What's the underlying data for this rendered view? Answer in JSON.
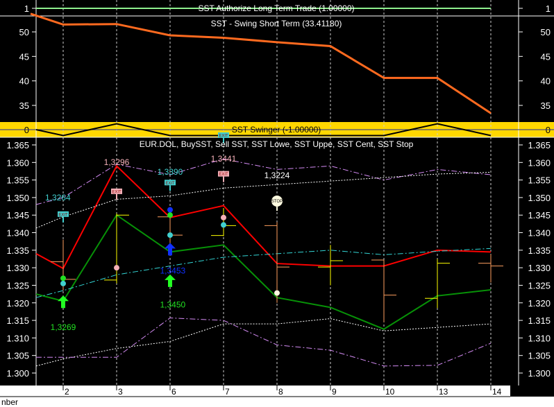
{
  "chart_data": [
    {
      "panel": "authorize",
      "type": "line",
      "title": "SST Authorize Long Term Trade (1.00000)",
      "yticks": [
        "1"
      ],
      "color": "#8ef08e",
      "values": [
        1,
        1,
        1,
        1,
        1,
        1,
        1,
        1,
        1
      ]
    },
    {
      "panel": "swing",
      "type": "line",
      "title": "SST - Swing Short Term (33.41180)",
      "ylim": [
        32,
        54
      ],
      "yticks": [
        "35",
        "40",
        "45",
        "50"
      ],
      "color": "#ff6a1f",
      "lead_value": 53.7,
      "values": [
        51.5,
        51.6,
        49.3,
        48.8,
        47.9,
        47.1,
        40.6,
        40.6,
        33.4
      ]
    },
    {
      "panel": "swinger",
      "type": "line",
      "title": "SST Swinger (-1.00000)",
      "ylim": [
        -1.2,
        1.2
      ],
      "yticks": [
        "0"
      ],
      "background": "#ffd700",
      "color": "#000000",
      "lead_value": 0,
      "values": [
        -1,
        1,
        -1,
        -1,
        -1,
        -1,
        -1,
        1,
        -1
      ]
    },
    {
      "panel": "price",
      "type": "line",
      "title": "EUR.DOL, BuySST, Sell SST, SST Lowe, SST Uppe, SST Cent, SST Stop",
      "ylim": [
        1.296,
        1.367
      ],
      "yticks": [
        "1.300",
        "1.305",
        "1.310",
        "1.315",
        "1.320",
        "1.325",
        "1.330",
        "1.335",
        "1.340",
        "1.345",
        "1.350",
        "1.355",
        "1.360",
        "1.365"
      ],
      "categories": [
        "2",
        "3",
        "6",
        "7",
        "8",
        "9",
        "10",
        "13",
        "14"
      ],
      "xlabel": "nber",
      "series": [
        {
          "color": "#ff0000",
          "style": "solid",
          "lead": 1.334,
          "values": [
            1.3298,
            1.359,
            1.3443,
            1.3477,
            1.3312,
            1.3305,
            1.3305,
            1.335,
            1.3345
          ]
        },
        {
          "color": "#079107",
          "style": "solid",
          "lead": 1.3225,
          "values": [
            1.3205,
            1.345,
            1.3345,
            1.3365,
            1.3215,
            1.3187,
            1.3125,
            1.322,
            1.3237
          ]
        },
        {
          "color": "#d58cf5",
          "style": "dashdot",
          "lead": 1.348,
          "values": [
            1.35,
            1.3595,
            1.3565,
            1.361,
            1.358,
            1.359,
            1.355,
            1.358,
            1.3565
          ]
        },
        {
          "color": "#ffffff",
          "style": "dotted",
          "lead": 1.3413,
          "values": [
            1.3445,
            1.3495,
            1.3505,
            1.3527,
            1.3537,
            1.3547,
            1.3557,
            1.3567,
            1.3572
          ]
        },
        {
          "color": "#33d6d6",
          "style": "dashdot",
          "lead": 1.3215,
          "values": [
            1.3235,
            1.328,
            1.3305,
            1.333,
            1.334,
            1.335,
            1.3337,
            1.3347,
            1.3355
          ]
        },
        {
          "color": "#ffffff",
          "style": "dotted",
          "lead": 1.302,
          "values": [
            1.304,
            1.307,
            1.309,
            1.314,
            1.314,
            1.3155,
            1.312,
            1.313,
            1.314
          ]
        },
        {
          "color": "#d58cf5",
          "style": "dashdot",
          "lead": 1.3045,
          "values": [
            1.3045,
            1.3045,
            1.3157,
            1.315,
            1.308,
            1.3065,
            1.302,
            1.3022,
            1.3085
          ]
        }
      ],
      "ohlc": [
        {
          "o": 1.3317,
          "h": 1.338,
          "l": 1.3235,
          "c": 1.3267,
          "color": "#ffa060"
        },
        {
          "o": 1.3265,
          "h": 1.3455,
          "l": 1.3255,
          "c": 1.345,
          "color": "#ffff00"
        },
        {
          "o": 1.3445,
          "h": 1.3445,
          "l": 1.334,
          "c": 1.3393,
          "color": "#ffa060"
        },
        {
          "o": 1.3392,
          "h": 1.347,
          "l": 1.339,
          "c": 1.342,
          "color": "#ffff00"
        },
        {
          "o": 1.342,
          "h": 1.343,
          "l": 1.32,
          "c": 1.3302,
          "color": "#ffa060"
        },
        {
          "o": 1.3302,
          "h": 1.3365,
          "l": 1.325,
          "c": 1.332,
          "color": "#ffff00"
        },
        {
          "o": 1.3322,
          "h": 1.3322,
          "l": 1.3145,
          "c": 1.3222,
          "color": "#ffa060"
        },
        {
          "o": 1.3213,
          "h": 1.3325,
          "l": 1.3185,
          "c": 1.3313,
          "color": "#ffff00"
        },
        {
          "o": 1.3313,
          "h": 1.3338,
          "l": 1.3258,
          "c": 1.3305,
          "color": "#ffa060"
        }
      ],
      "dots": [
        {
          "i": 0,
          "y": 1.327,
          "color": "#22e022"
        },
        {
          "i": 0,
          "y": 1.3255,
          "color": "#40d0d0"
        },
        {
          "i": 1,
          "y": 1.33,
          "color": "#f4b0b8"
        },
        {
          "i": 2,
          "y": 1.3465,
          "color": "#1030ff"
        },
        {
          "i": 2,
          "y": 1.345,
          "color": "#22e022"
        },
        {
          "i": 2,
          "y": 1.3393,
          "color": "#40d0d0"
        },
        {
          "i": 3,
          "y": 1.3443,
          "color": "#f4b0b8"
        },
        {
          "i": 3,
          "y": 1.3422,
          "color": "#40d0d0"
        },
        {
          "i": 4,
          "y": 1.3228,
          "color": "#fffbe0"
        }
      ],
      "arrows": [
        {
          "i": 0,
          "y": 1.3205,
          "color": "#22ff22"
        },
        {
          "i": 2,
          "y": 1.3355,
          "color": "#1030ff"
        },
        {
          "i": 2,
          "y": 1.3265,
          "color": "#22ff22"
        }
      ],
      "flags": [
        {
          "i": 0,
          "y": 1.3435,
          "label": "EXIT",
          "color": "#40d0d0"
        },
        {
          "i": 1,
          "y": 1.35,
          "label": "EXIT",
          "color": "#f4b0b8"
        },
        {
          "i": 2,
          "y": 1.3525,
          "label": "EXIT",
          "color": "#40d0d0"
        },
        {
          "i": 3,
          "y": 1.355,
          "label": "EXIT",
          "color": "#f4b0b8"
        },
        {
          "i": 3,
          "y": 1.366,
          "label": "EXIT",
          "color": "#40d0d0"
        }
      ],
      "stop": {
        "i": 4,
        "y": 1.349,
        "label": "STOP"
      },
      "annotations": [
        {
          "text": "1,3264",
          "i": -0.1,
          "y": 1.3502,
          "color": "#40d0d0"
        },
        {
          "text": "1,3296",
          "i": 1,
          "y": 1.3603,
          "color": "#f4b0b8"
        },
        {
          "text": "1,3390",
          "i": 2,
          "y": 1.3575,
          "color": "#40d0d0"
        },
        {
          "text": "1,3441",
          "i": 3,
          "y": 1.3612,
          "color": "#f4b0b8"
        },
        {
          "text": "1,3224",
          "i": 4,
          "y": 1.3565,
          "color": "#ffffff"
        },
        {
          "text": "1,3453",
          "i": 2.05,
          "y": 1.3293,
          "color": "#1030ff"
        },
        {
          "text": "1,3450",
          "i": 2.05,
          "y": 1.3197,
          "color": "#22e022"
        },
        {
          "text": "1,3269",
          "i": 0,
          "y": 1.3132,
          "color": "#22e022"
        }
      ]
    }
  ]
}
